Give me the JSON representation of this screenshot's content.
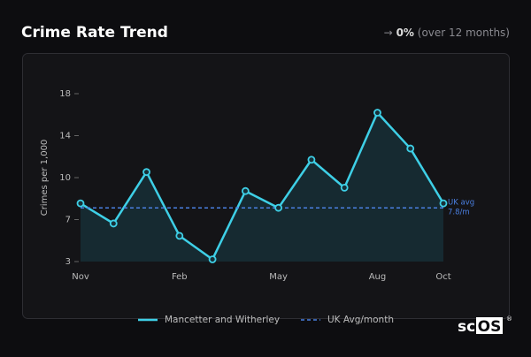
{
  "header": {
    "title": "Crime Rate Trend",
    "arrow": "→",
    "change": "0%",
    "period": "(over 12 months)"
  },
  "chart_data": {
    "type": "line",
    "y_label": "Crimes per 1,000",
    "categories": [
      "Nov",
      null,
      null,
      "Feb",
      null,
      null,
      "May",
      null,
      null,
      "Aug",
      null,
      "Oct"
    ],
    "series": [
      {
        "name": "Mancetter and Witherley",
        "color": "#3ecfe6",
        "values": [
          8.2,
          6.4,
          11.0,
          5.3,
          3.2,
          9.3,
          7.8,
          12.1,
          9.6,
          16.3,
          13.1,
          8.2
        ]
      }
    ],
    "reference_line": {
      "name": "UK Avg/month",
      "value": 7.8,
      "color": "#4a7fe0",
      "annotation": [
        "UK avg",
        "7.8/m"
      ]
    },
    "ylim": [
      3,
      18
    ],
    "yticks": [
      3,
      {
        "value": 6.75,
        "label": "7"
      },
      {
        "value": 10.5,
        "label": "10"
      },
      {
        "value": 14.25,
        "label": "14"
      },
      18
    ],
    "area_fill": "#173038"
  },
  "watermark": {
    "prefix": "sc",
    "boxed": "OS",
    "mark": "®"
  }
}
